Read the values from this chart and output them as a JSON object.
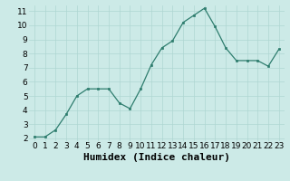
{
  "x": [
    0,
    1,
    2,
    3,
    4,
    5,
    6,
    7,
    8,
    9,
    10,
    11,
    12,
    13,
    14,
    15,
    16,
    17,
    18,
    19,
    20,
    21,
    22,
    23
  ],
  "y": [
    2.1,
    2.1,
    2.6,
    3.7,
    5.0,
    5.5,
    5.5,
    5.5,
    4.5,
    4.1,
    5.5,
    7.2,
    8.4,
    8.9,
    10.2,
    10.7,
    11.2,
    9.9,
    8.4,
    7.5,
    7.5,
    7.5,
    7.1,
    8.3
  ],
  "xlabel": "Humidex (Indice chaleur)",
  "ylim_min": 1.8,
  "ylim_max": 11.4,
  "xlim_min": -0.5,
  "xlim_max": 23.5,
  "yticks": [
    2,
    3,
    4,
    5,
    6,
    7,
    8,
    9,
    10,
    11
  ],
  "xticks": [
    0,
    1,
    2,
    3,
    4,
    5,
    6,
    7,
    8,
    9,
    10,
    11,
    12,
    13,
    14,
    15,
    16,
    17,
    18,
    19,
    20,
    21,
    22,
    23
  ],
  "line_color": "#2e7d6e",
  "marker_color": "#2e7d6e",
  "bg_color": "#cceae7",
  "grid_color": "#afd6d2",
  "tick_label_fontsize": 6.5,
  "xlabel_fontsize": 8
}
